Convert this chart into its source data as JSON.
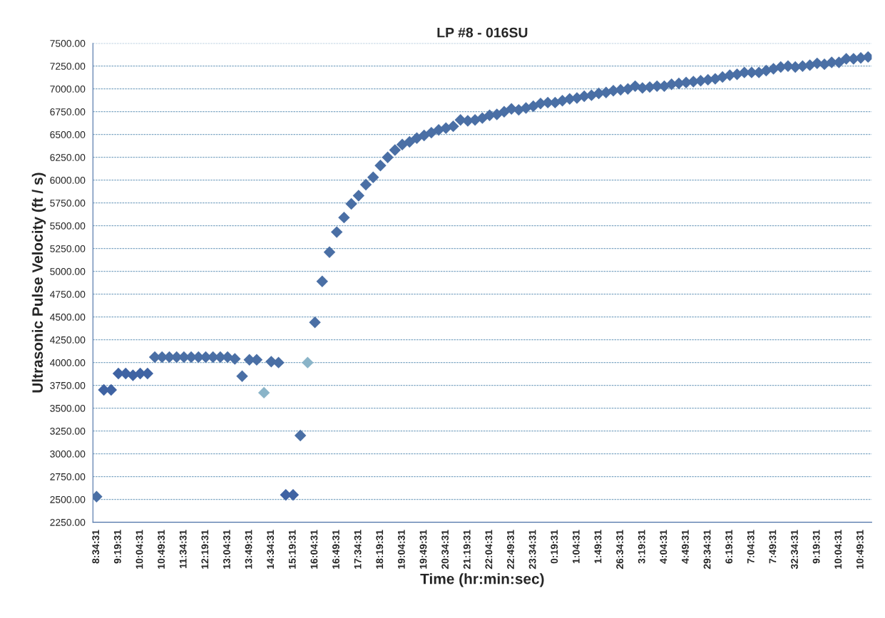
{
  "chart_data": {
    "type": "scatter",
    "title": "LP #8 - 016SU",
    "xlabel": "Time (hr:min:sec)",
    "ylabel": "Ultrasonic Pulse Velocity (ft / s)",
    "categories": [
      "8:34:31",
      null,
      null,
      "9:19:31",
      null,
      null,
      "10:04:31",
      null,
      null,
      "10:49:31",
      null,
      null,
      "11:34:31",
      null,
      null,
      "12:19:31",
      null,
      null,
      "13:04:31",
      null,
      null,
      "13:49:31",
      null,
      null,
      "14:34:31",
      null,
      null,
      "15:19:31",
      null,
      null,
      "16:04:31",
      null,
      null,
      "16:49:31",
      null,
      null,
      "17:34:31",
      null,
      null,
      "18:19:31",
      null,
      null,
      "19:04:31",
      null,
      null,
      "19:49:31",
      null,
      null,
      "20:34:31",
      null,
      null,
      "21:19:31",
      null,
      null,
      "22:04:31",
      null,
      null,
      "22:49:31",
      null,
      null,
      "23:34:31",
      null,
      null,
      "0:19:31",
      null,
      null,
      "1:04:31",
      null,
      null,
      "1:49:31",
      null,
      null,
      "26:34:31",
      null,
      null,
      "3:19:31",
      null,
      null,
      "4:04:31",
      null,
      null,
      "4:49:31",
      null,
      null,
      "29:34:31",
      null,
      null,
      "6:19:31",
      null,
      null,
      "7:04:31",
      null,
      null,
      "7:49:31",
      null,
      null,
      "32:34:31",
      null,
      null,
      "9:19:31",
      null,
      null,
      "10:04:31",
      null,
      null,
      "10:49:31",
      null
    ],
    "values": [
      2530,
      3700,
      3700,
      3880,
      3880,
      3860,
      3880,
      3880,
      4060,
      4060,
      4060,
      4060,
      4060,
      4060,
      4060,
      4060,
      4060,
      4060,
      4060,
      4040,
      3850,
      4030,
      4030,
      3670,
      4010,
      4000,
      2550,
      2550,
      3200,
      4000,
      4440,
      4890,
      5210,
      5430,
      5590,
      5740,
      5830,
      5950,
      6030,
      6160,
      6250,
      6330,
      6390,
      6420,
      6460,
      6490,
      6520,
      6550,
      6570,
      6590,
      6660,
      6650,
      6660,
      6680,
      6710,
      6720,
      6750,
      6780,
      6770,
      6790,
      6810,
      6840,
      6850,
      6850,
      6870,
      6890,
      6900,
      6920,
      6930,
      6950,
      6960,
      6980,
      6990,
      7000,
      7030,
      7010,
      7020,
      7030,
      7030,
      7050,
      7060,
      7070,
      7080,
      7090,
      7100,
      7110,
      7130,
      7150,
      7160,
      7180,
      7180,
      7180,
      7200,
      7220,
      7240,
      7250,
      7240,
      7250,
      7260,
      7280,
      7270,
      7290,
      7290,
      7330,
      7330,
      7340,
      7350
    ],
    "colors": [
      "#4a6fa5",
      "#3f63a3",
      "#3f63a3",
      "#3f63a3",
      "#3f63a3",
      "#3f63a3",
      "#3f63a3",
      "#3f63a3",
      "#4a6fa5",
      "#4a6fa5",
      "#4a6fa5",
      "#4a6fa5",
      "#4a6fa5",
      "#4a6fa5",
      "#4a6fa5",
      "#4a6fa5",
      "#4a6fa5",
      "#4a6fa5",
      "#4a6fa5",
      "#4a6fa5",
      "#4a6fa5",
      "#4a6fa5",
      "#4a6fa5",
      "#8ab4c8",
      "#4a6fa5",
      "#4a6fa5",
      "#3f63a3",
      "#3f63a3",
      "#4a6fa5",
      "#8ab4c8",
      "#4a6fa5",
      "#4a6fa5",
      "#4a6fa5",
      "#4a6fa5",
      "#4a6fa5",
      "#4a6fa5",
      "#4a6fa5",
      "#4a6fa5",
      "#4a6fa5",
      "#4a6fa5",
      "#4a6fa5",
      "#4a6fa5",
      "#4a6fa5",
      "#4a6fa5",
      "#4a6fa5",
      "#4a6fa5",
      "#4a6fa5",
      "#4a6fa5",
      "#4a6fa5",
      "#4a6fa5",
      "#4a6fa5",
      "#4a6fa5",
      "#4a6fa5",
      "#4a6fa5",
      "#4a6fa5",
      "#4a6fa5",
      "#4a6fa5",
      "#4a6fa5",
      "#4a6fa5",
      "#4a6fa5",
      "#4a6fa5",
      "#4a6fa5",
      "#4a6fa5",
      "#4a6fa5",
      "#4a6fa5",
      "#4a6fa5",
      "#4a6fa5",
      "#4a6fa5",
      "#4a6fa5",
      "#4a6fa5",
      "#4a6fa5",
      "#4a6fa5",
      "#4a6fa5",
      "#4a6fa5",
      "#4a6fa5",
      "#4a6fa5",
      "#4a6fa5",
      "#4a6fa5",
      "#4a6fa5",
      "#4a6fa5",
      "#4a6fa5",
      "#4a6fa5",
      "#4a6fa5",
      "#4a6fa5",
      "#4a6fa5",
      "#4a6fa5",
      "#4a6fa5",
      "#4a6fa5",
      "#4a6fa5",
      "#4a6fa5",
      "#4a6fa5",
      "#4a6fa5",
      "#4a6fa5",
      "#4a6fa5",
      "#4a6fa5",
      "#4a6fa5",
      "#4a6fa5",
      "#4a6fa5",
      "#4a6fa5",
      "#4a6fa5",
      "#4a6fa5",
      "#4a6fa5",
      "#4a6fa5",
      "#4a6fa5",
      "#4a6fa5",
      "#4a6fa5",
      "#4a6fa5"
    ],
    "ylim": [
      2250,
      7500
    ],
    "yticks": [
      {
        "value": 2250,
        "label": "2250.00"
      },
      {
        "value": 2500,
        "label": "2500.00"
      },
      {
        "value": 2750,
        "label": "2750.00"
      },
      {
        "value": 3000,
        "label": "3000.00"
      },
      {
        "value": 3250,
        "label": "3250.00"
      },
      {
        "value": 3500,
        "label": "3500.00"
      },
      {
        "value": 3750,
        "label": "3750.00"
      },
      {
        "value": 4000,
        "label": "4000.00"
      },
      {
        "value": 4250,
        "label": "4250.00"
      },
      {
        "value": 4500,
        "label": "4500.00"
      },
      {
        "value": 4750,
        "label": "4750.00"
      },
      {
        "value": 5000,
        "label": "5000.00"
      },
      {
        "value": 5250,
        "label": "5250.00"
      },
      {
        "value": 5500,
        "label": "5500.00"
      },
      {
        "value": 5750,
        "label": "5750.00"
      },
      {
        "value": 6000,
        "label": "6000.00"
      },
      {
        "value": 6250,
        "label": "6250.00"
      },
      {
        "value": 6500,
        "label": "6500.00"
      },
      {
        "value": 6750,
        "label": "6750.00"
      },
      {
        "value": 7000,
        "label": "7000.00"
      },
      {
        "value": 7250,
        "label": "7250.00"
      },
      {
        "value": 7500,
        "label": "7500.00"
      }
    ],
    "grid": "y",
    "marker": "diamond",
    "legend": false
  }
}
